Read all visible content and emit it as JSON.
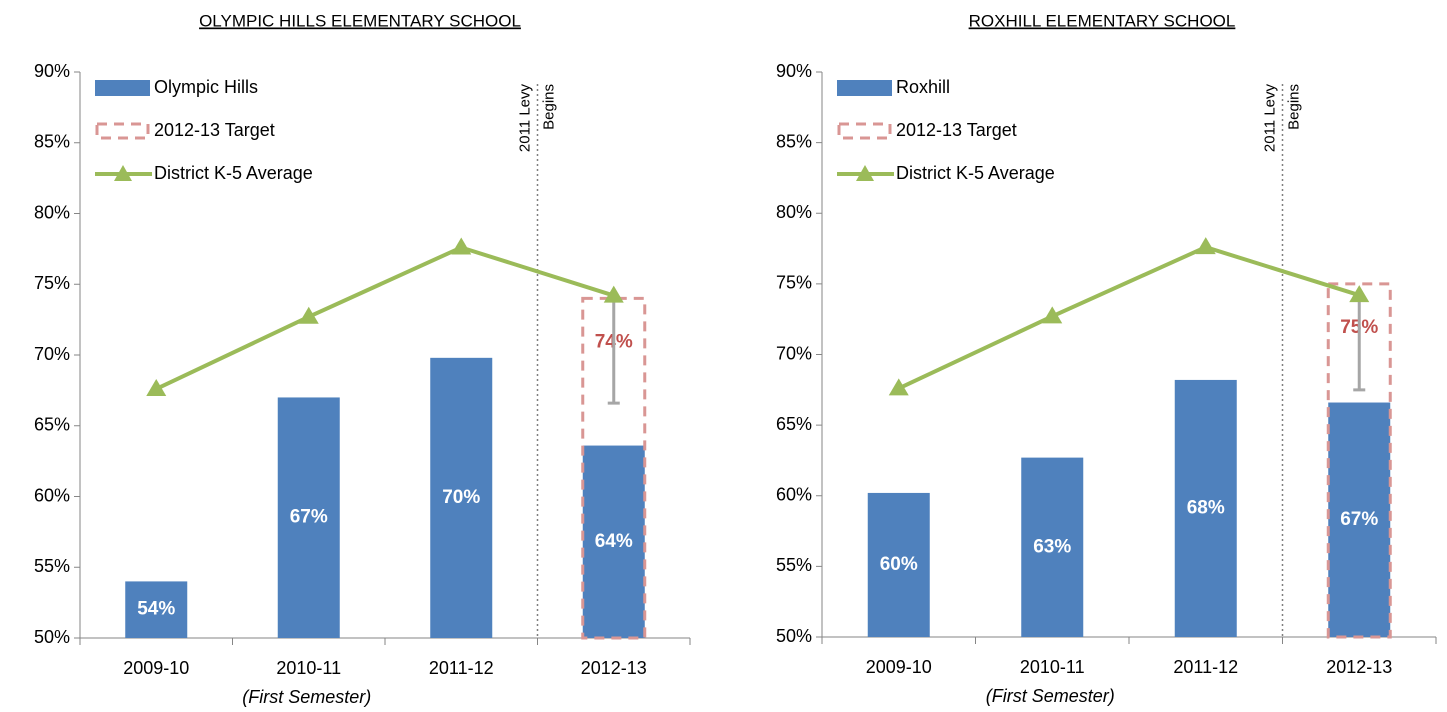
{
  "chart_data": [
    {
      "type": "bar",
      "title": "OLYMPIC HILLS ELEMENTARY SCHOOL",
      "categories": [
        "2009-10",
        "2010-11",
        "2011-12",
        "2012-13"
      ],
      "annotation": "(First Semester)",
      "marker_note": [
        "2011 Levy",
        "Begins"
      ],
      "ylim": [
        50,
        90
      ],
      "yticks": [
        {
          "value": 50,
          "label": "50%"
        },
        {
          "value": 55,
          "label": "55%"
        },
        {
          "value": 60,
          "label": "60%"
        },
        {
          "value": 65,
          "label": "65%"
        },
        {
          "value": 70,
          "label": "70%"
        },
        {
          "value": 75,
          "label": "75%"
        },
        {
          "value": 80,
          "label": "80%"
        },
        {
          "value": 85,
          "label": "85%"
        },
        {
          "value": 90,
          "label": "90%"
        }
      ],
      "series": [
        {
          "name": "Olympic Hills",
          "kind": "bar",
          "color": "#4f81bd",
          "values": [
            54,
            67,
            69.8,
            63.6
          ],
          "value_labels": [
            "54%",
            "67%",
            "70%",
            "64%"
          ]
        },
        {
          "name": "2012-13 Target",
          "kind": "outline",
          "color": "#d99694",
          "values": [
            null,
            null,
            null,
            74
          ],
          "value_labels": [
            null,
            null,
            null,
            "74%"
          ]
        },
        {
          "name": "District K-5 Average",
          "kind": "line",
          "color": "#9bbb59",
          "values": [
            67.6,
            72.7,
            77.6,
            74.2
          ],
          "errors": [
            null,
            null,
            null,
            7.6
          ],
          "error_color": "#a6a6a6"
        }
      ]
    },
    {
      "type": "bar",
      "title": "ROXHILL ELEMENTARY SCHOOL",
      "categories": [
        "2009-10",
        "2010-11",
        "2011-12",
        "2012-13"
      ],
      "annotation": "(First Semester)",
      "marker_note": [
        "2011 Levy",
        "Begins"
      ],
      "ylim": [
        50,
        90
      ],
      "yticks": [
        {
          "value": 50,
          "label": "50%"
        },
        {
          "value": 55,
          "label": "55%"
        },
        {
          "value": 60,
          "label": "60%"
        },
        {
          "value": 65,
          "label": "65%"
        },
        {
          "value": 70,
          "label": "70%"
        },
        {
          "value": 75,
          "label": "75%"
        },
        {
          "value": 80,
          "label": "80%"
        },
        {
          "value": 85,
          "label": "85%"
        },
        {
          "value": 90,
          "label": "90%"
        }
      ],
      "series": [
        {
          "name": "Roxhill",
          "kind": "bar",
          "color": "#4f81bd",
          "values": [
            60.2,
            62.7,
            68.2,
            66.6
          ],
          "value_labels": [
            "60%",
            "63%",
            "68%",
            "67%"
          ]
        },
        {
          "name": "2012-13 Target",
          "kind": "outline",
          "color": "#d99694",
          "values": [
            null,
            null,
            null,
            75
          ],
          "value_labels": [
            null,
            null,
            null,
            "75%"
          ]
        },
        {
          "name": "District K-5 Average",
          "kind": "line",
          "color": "#9bbb59",
          "values": [
            67.6,
            72.7,
            77.6,
            74.2
          ],
          "errors": [
            null,
            null,
            null,
            6.7
          ],
          "error_color": "#a6a6a6"
        }
      ]
    }
  ]
}
